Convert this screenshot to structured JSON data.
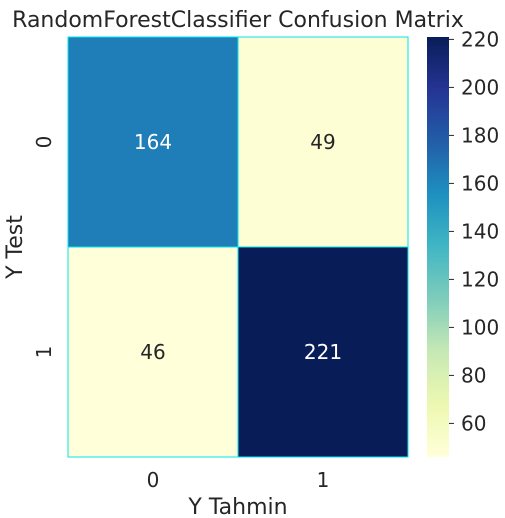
{
  "chart_data": {
    "type": "heatmap",
    "title": "RandomForestClassifier Confusion Matrix",
    "xlabel": "Y Tahmin",
    "ylabel": "Y Test",
    "x_categories": [
      "0",
      "1"
    ],
    "y_categories": [
      "0",
      "1"
    ],
    "values": [
      [
        164,
        49
      ],
      [
        46,
        221
      ]
    ],
    "colormap": "YlGnBu",
    "cell_border_color": "#00e5ee",
    "colorbar": {
      "range": [
        46,
        221
      ],
      "ticks": [
        60,
        80,
        100,
        120,
        140,
        160,
        180,
        200,
        220
      ]
    }
  }
}
